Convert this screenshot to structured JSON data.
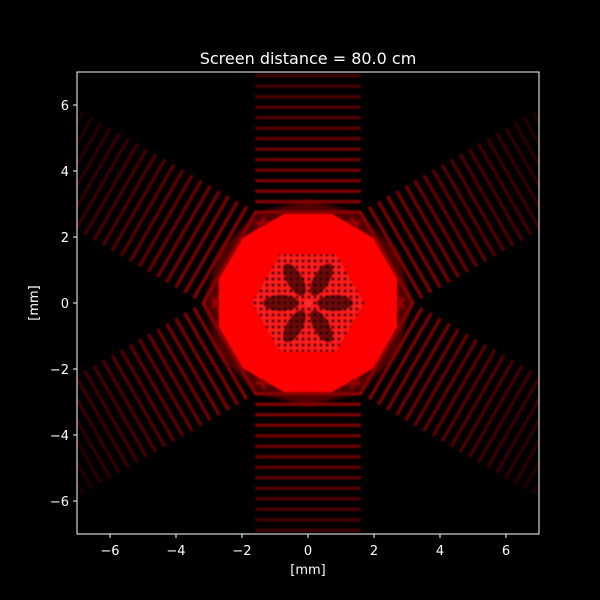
{
  "colors": {
    "background": "#000000",
    "foreground": "#ffffff",
    "pattern": "#ff0000"
  },
  "chart_data": {
    "type": "heatmap",
    "title": "Screen distance = 80.0 cm",
    "xlabel": "[mm]",
    "ylabel": "[mm]",
    "xlim": [
      -7,
      7
    ],
    "ylim": [
      -7,
      7
    ],
    "xticks": [
      -6,
      -4,
      -2,
      0,
      2,
      4,
      6
    ],
    "yticks": [
      -6,
      -4,
      -2,
      0,
      2,
      4,
      6
    ],
    "xtick_labels": [
      "−6",
      "−4",
      "−2",
      "0",
      "2",
      "4",
      "6"
    ],
    "ytick_labels": [
      "−6",
      "−4",
      "−2",
      "0",
      "2",
      "4",
      "6"
    ],
    "grid": false,
    "legend": "none",
    "colormap": "black-to-red",
    "pattern": {
      "symmetry": "hexagonal",
      "bright_region_radius_mm": 2.8,
      "inner_hexagon_radius_mm": 1.7,
      "fringe_arms": 6,
      "fringe_extent_mm": 7
    }
  }
}
